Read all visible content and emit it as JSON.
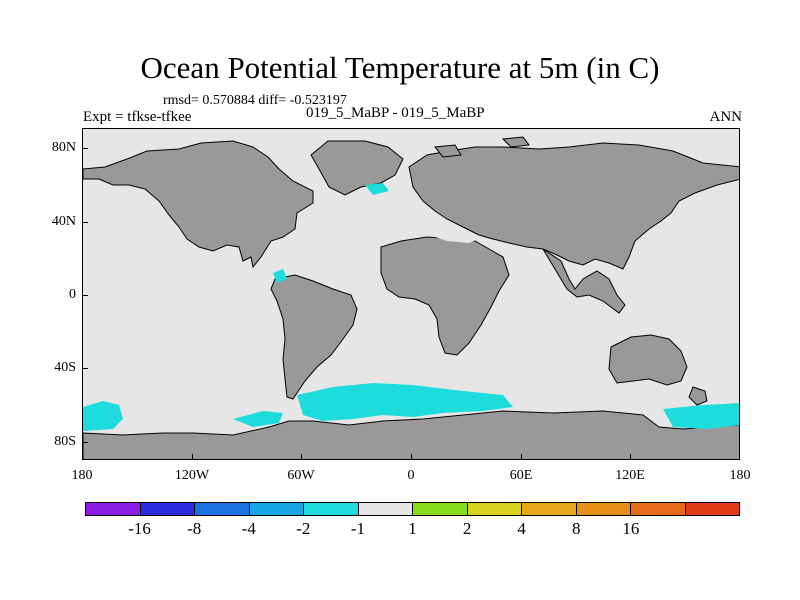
{
  "title": "Ocean Potential Temperature at 5m (in C)",
  "stats": "rmsd= 0.570884 diff= -0.523197",
  "experiment": "Expt = tfkse-tfkee",
  "case": "019_5_MaBP - 019_5_MaBP",
  "season": "ANN",
  "y_ticks": [
    "80N",
    "40N",
    "0",
    "40S",
    "80S"
  ],
  "x_ticks": [
    "180",
    "120W",
    "60W",
    "0",
    "60E",
    "120E",
    "180"
  ],
  "colors": {
    "ocean": "#e6e6e6",
    "land": "#999999",
    "anomaly": "#1fdcdc"
  },
  "colorbar": {
    "colors": [
      "#8c1fe6",
      "#2c2ce0",
      "#1a73e0",
      "#17a6e6",
      "#1fdcdc",
      "#e6e6e6",
      "#86dc1a",
      "#d6d21f",
      "#e6a81a",
      "#e6901a",
      "#e66a1a",
      "#e03a1a"
    ],
    "labels": [
      "-16",
      "-8",
      "-4",
      "-2",
      "-1",
      "1",
      "2",
      "4",
      "8",
      "16"
    ]
  }
}
